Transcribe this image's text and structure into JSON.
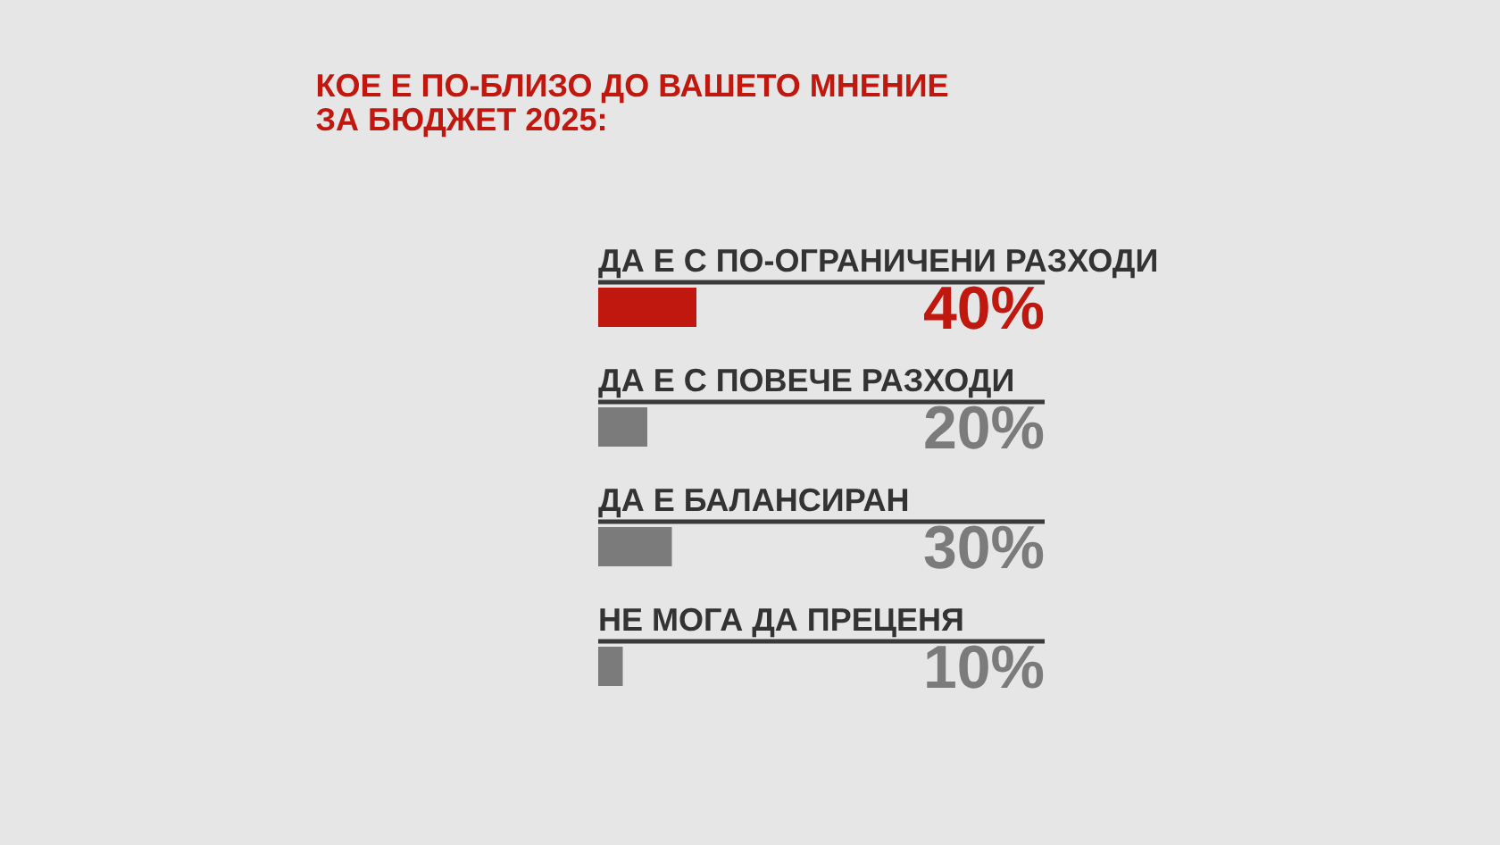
{
  "chart_data": {
    "type": "bar",
    "orientation": "horizontal",
    "title": "КОЕ Е ПО-БЛИЗО ДО ВАШЕТО МНЕНИЕ\nЗА БЮДЖЕТ 2025:",
    "categories": [
      "ДА Е С ПО-ОГРАНИЧЕНИ РАЗХОДИ",
      "ДА Е С ПОВЕЧЕ РАЗХОДИ",
      "ДА Е БАЛАНСИРАН",
      "НЕ МОГА ДА ПРЕЦЕНЯ"
    ],
    "values": [
      40,
      20,
      30,
      10
    ],
    "value_labels": [
      "40%",
      "20%",
      "30%",
      "10%"
    ],
    "colors": [
      "#c0170f",
      "#7b7b7b",
      "#7b7b7b",
      "#7b7b7b"
    ],
    "grid": "y",
    "legend": false
  }
}
